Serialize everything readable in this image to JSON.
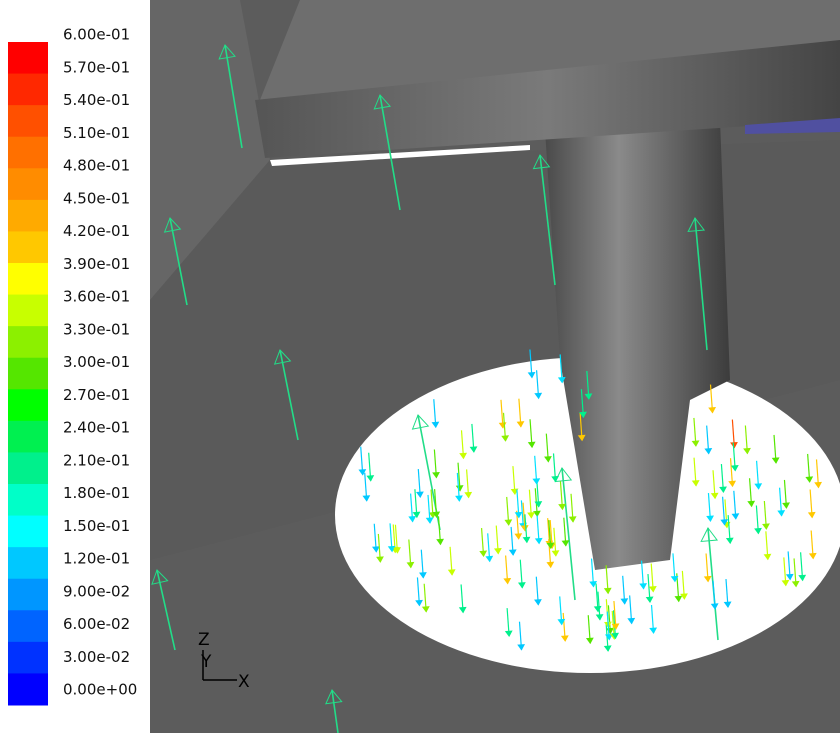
{
  "colorbar": {
    "labels": [
      "6.00e-01",
      "5.70e-01",
      "5.40e-01",
      "5.10e-01",
      "4.80e-01",
      "4.50e-01",
      "4.20e-01",
      "3.90e-01",
      "3.60e-01",
      "3.30e-01",
      "3.00e-01",
      "2.70e-01",
      "2.40e-01",
      "2.10e-01",
      "1.80e-01",
      "1.50e-01",
      "1.20e-01",
      "9.00e-02",
      "6.00e-02",
      "3.00e-02",
      "0.00e+00"
    ],
    "colors": [
      "#ff0000",
      "#ff2800",
      "#ff5000",
      "#ff7000",
      "#ff8c00",
      "#ffaa00",
      "#ffc800",
      "#ffff00",
      "#c8ff00",
      "#8cf000",
      "#55e600",
      "#00ff00",
      "#00f050",
      "#00f08c",
      "#00ffc8",
      "#00ffff",
      "#00c8ff",
      "#0096ff",
      "#0064ff",
      "#0032ff",
      "#0000ff"
    ]
  },
  "axes_triad": {
    "z": "Z",
    "y": "Y",
    "x": "X"
  }
}
